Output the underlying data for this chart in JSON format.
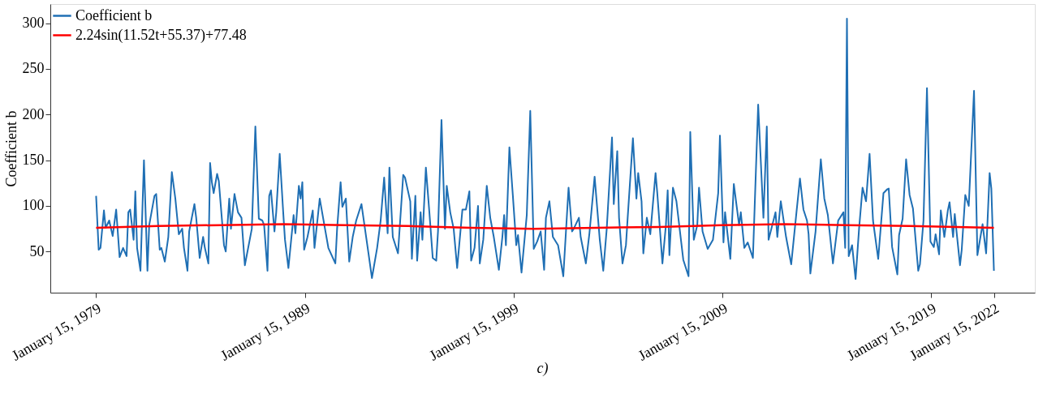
{
  "chart_data": {
    "type": "line",
    "ylabel": "Coefficient b",
    "annotations": [
      "c)"
    ],
    "legend": "top left",
    "grid": false,
    "line_style": "solid",
    "marker": "none",
    "xlim": [
      "1976-11-05",
      "2024-01-01"
    ],
    "ylim": [
      5,
      321
    ],
    "yticks": [
      50,
      100,
      150,
      200,
      250,
      300
    ],
    "xticks": [
      {
        "value": "1979-01-15",
        "label": "January 15, 1979"
      },
      {
        "value": "1989-01-15",
        "label": "January 15, 1989"
      },
      {
        "value": "1999-01-15",
        "label": "January 15, 1999"
      },
      {
        "value": "2009-01-15",
        "label": "January 15, 2009"
      },
      {
        "value": "2019-01-15",
        "label": "January 15, 2019"
      },
      {
        "value": "2022-01-15",
        "label": "January 15, 2022"
      }
    ],
    "series": [
      {
        "name": "Coefficient b",
        "color": "#1f6fb4",
        "x": [
          "1979-01-15",
          "1979-03",
          "1979-04",
          "1979-06",
          "1979-07",
          "1979-09",
          "1979-11",
          "1980-01",
          "1980-03",
          "1980-05",
          "1980-07",
          "1980-08",
          "1980-09",
          "1980-11",
          "1980-12",
          "1981-01",
          "1981-03",
          "1981-05",
          "1981-07",
          "1981-08",
          "1981-11",
          "1981-12",
          "1982-02",
          "1982-03",
          "1982-05",
          "1982-07",
          "1982-09",
          "1982-11",
          "1983-01",
          "1983-03",
          "1983-04",
          "1983-06",
          "1983-07",
          "1983-10",
          "1983-11",
          "1984-01",
          "1984-03",
          "1984-04",
          "1984-06",
          "1984-07",
          "1984-08",
          "1984-09",
          "1984-11",
          "1984-12",
          "1985-03",
          "1985-04",
          "1985-06",
          "1985-07",
          "1985-09",
          "1985-11",
          "1986-01",
          "1986-03",
          "1986-07",
          "1986-09",
          "1986-11",
          "1987-01",
          "1987-02",
          "1987-04",
          "1987-05",
          "1987-06",
          "1987-08",
          "1987-09",
          "1987-11",
          "1988-01",
          "1988-02",
          "1988-04",
          "1988-07",
          "1988-08",
          "1988-10",
          "1988-11",
          "1988-12",
          "1989-01",
          "1989-03",
          "1989-06",
          "1989-07",
          "1989-10",
          "1990-01",
          "1990-03",
          "1990-07",
          "1990-08",
          "1990-10",
          "1990-11",
          "1991-01",
          "1991-03",
          "1991-05",
          "1991-07",
          "1991-10",
          "1992-02",
          "1992-04",
          "1992-07",
          "1992-09",
          "1992-11",
          "1993-01",
          "1993-02",
          "1993-04",
          "1993-07",
          "1993-10",
          "1993-11",
          "1994-02",
          "1994-03",
          "1994-05",
          "1994-06",
          "1994-08",
          "1994-09",
          "1994-11",
          "1995-01",
          "1995-03",
          "1995-05",
          "1995-06",
          "1995-08",
          "1995-10",
          "1995-11",
          "1996-01",
          "1996-03",
          "1996-05",
          "1996-08",
          "1996-10",
          "1996-12",
          "1997-01",
          "1997-03",
          "1997-05",
          "1997-06",
          "1997-08",
          "1997-10",
          "1997-12",
          "1998-02",
          "1998-05",
          "1998-07",
          "1998-08",
          "1998-09",
          "1998-11",
          "1999-01",
          "1999-03",
          "1999-04",
          "1999-06",
          "1999-09",
          "1999-11",
          "2000-01",
          "2000-03",
          "2000-05",
          "2000-07",
          "2000-08",
          "2000-10",
          "2000-12",
          "2001-03",
          "2001-06",
          "2001-09",
          "2001-11",
          "2001-12",
          "2002-03",
          "2002-04",
          "2002-07",
          "2002-09",
          "2002-12",
          "2003-03",
          "2003-05",
          "2003-07",
          "2003-10",
          "2003-11",
          "2004-01",
          "2004-02",
          "2004-04",
          "2004-06",
          "2004-07",
          "2004-10",
          "2004-12",
          "2005-01",
          "2005-03",
          "2005-04",
          "2005-06",
          "2005-08",
          "2005-11",
          "2005-12",
          "2006-03",
          "2006-05",
          "2006-06",
          "2006-07",
          "2006-09",
          "2006-11",
          "2007-03",
          "2007-06",
          "2007-07",
          "2007-09",
          "2007-11",
          "2007-12",
          "2008-02",
          "2008-05",
          "2008-08",
          "2008-11",
          "2008-12",
          "2009-02",
          "2009-03",
          "2009-06",
          "2009-08",
          "2009-11",
          "2009-12",
          "2010-02",
          "2010-04",
          "2010-07",
          "2010-10",
          "2011-01",
          "2011-03",
          "2011-04",
          "2011-08",
          "2011-09",
          "2011-11",
          "2012-02",
          "2012-05",
          "2012-08",
          "2012-10",
          "2012-12",
          "2013-02",
          "2013-03",
          "2013-04",
          "2013-07",
          "2013-10",
          "2013-12",
          "2014-02",
          "2014-05",
          "2014-08",
          "2014-11",
          "2014-12",
          "2015-01",
          "2015-02",
          "2015-04",
          "2015-06",
          "2015-08",
          "2015-10",
          "2015-12",
          "2016-02",
          "2016-04",
          "2016-07",
          "2016-10",
          "2016-12",
          "2017-01",
          "2017-03",
          "2017-06",
          "2017-07",
          "2017-09",
          "2017-11",
          "2018-01",
          "2018-03",
          "2018-06",
          "2018-07",
          "2018-09",
          "2018-11",
          "2019-01",
          "2019-03",
          "2019-04",
          "2019-06",
          "2019-07",
          "2019-09",
          "2019-11",
          "2019-12",
          "2020-02",
          "2020-03",
          "2020-06",
          "2020-07",
          "2020-09",
          "2020-11",
          "2021-02",
          "2021-04",
          "2021-07",
          "2021-09",
          "2021-11",
          "2021-12",
          "2022-01-15"
        ],
        "values": [
          111,
          52,
          54,
          95,
          76,
          84,
          67,
          96,
          44,
          54,
          45,
          93,
          96,
          63,
          116,
          54,
          29,
          150,
          29,
          79,
          111,
          113,
          52,
          54,
          39,
          66,
          137,
          108,
          69,
          75,
          54,
          29,
          72,
          102,
          87,
          43,
          66,
          54,
          37,
          147,
          126,
          114,
          135,
          127,
          57,
          50,
          108,
          75,
          113,
          93,
          87,
          35,
          75,
          187,
          86,
          84,
          79,
          29,
          111,
          117,
          72,
          93,
          157,
          93,
          63,
          32,
          90,
          70,
          122,
          108,
          126,
          52,
          66,
          95,
          54,
          108,
          75,
          54,
          37,
          75,
          126,
          99,
          108,
          39,
          66,
          84,
          102,
          48,
          21,
          54,
          84,
          131,
          70,
          142,
          66,
          48,
          134,
          131,
          105,
          42,
          111,
          40,
          93,
          63,
          142,
          93,
          43,
          40,
          72,
          194,
          75,
          122,
          93,
          75,
          32,
          96,
          96,
          116,
          40,
          54,
          100,
          37,
          63,
          122,
          87,
          66,
          30,
          66,
          90,
          57,
          164,
          111,
          57,
          68,
          27,
          90,
          204,
          53,
          61,
          72,
          30,
          87,
          105,
          66,
          57,
          23,
          120,
          72,
          75,
          87,
          66,
          37,
          70,
          132,
          63,
          29,
          75,
          175,
          102,
          160,
          87,
          37,
          57,
          87,
          174,
          108,
          136,
          105,
          48,
          87,
          69,
          136,
          114,
          37,
          79,
          117,
          46,
          120,
          105,
          41,
          23,
          181,
          63,
          79,
          120,
          72,
          53,
          63,
          114,
          177,
          60,
          93,
          42,
          124,
          79,
          93,
          54,
          60,
          43,
          211,
          87,
          187,
          63,
          93,
          66,
          105,
          66,
          36,
          93,
          130,
          96,
          84,
          69,
          26,
          72,
          151,
          108,
          90,
          37,
          84,
          93,
          54,
          305,
          45,
          57,
          20,
          75,
          120,
          105,
          157,
          84,
          42,
          114,
          118,
          119,
          55,
          25,
          68,
          86,
          151,
          112,
          97,
          29,
          36,
          84,
          229,
          61,
          55,
          69,
          47,
          95,
          66,
          95,
          104,
          66,
          91,
          35,
          52,
          112,
          100,
          226,
          46,
          80,
          48,
          136,
          119,
          29
        ]
      },
      {
        "name": "2.24sin(11.52t+55.37)+77.48",
        "color": "#ff0000",
        "x": [
          "1979-01-15",
          "1982-01",
          "1985-01",
          "1988-01",
          "1991-01",
          "1994-01",
          "1997-01",
          "2000-01",
          "2003-01",
          "2006-01",
          "2009-01",
          "2012-01",
          "2015-01",
          "2018-01",
          "2022-01-15"
        ],
        "values": [
          76,
          78,
          79,
          80,
          79,
          78,
          76,
          75,
          76,
          77,
          79,
          80,
          79,
          78,
          76
        ]
      }
    ]
  }
}
